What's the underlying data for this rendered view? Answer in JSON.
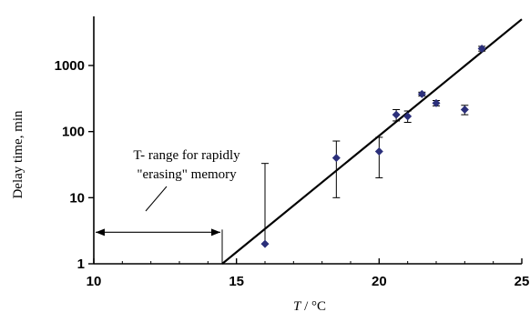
{
  "chart_data": {
    "type": "scatter",
    "xlabel": "T / °C",
    "xlabel_italic_part": "T",
    "xlabel_rest": " / °C",
    "ylabel": "Delay time, min",
    "xlim": [
      10,
      25
    ],
    "ylim": [
      1,
      5000
    ],
    "yscale": "log",
    "x_ticks": [
      10,
      15,
      20,
      25
    ],
    "x_tick_labels": [
      "10",
      "15",
      "20",
      "25"
    ],
    "y_ticks": [
      1,
      10,
      100,
      1000
    ],
    "y_tick_labels": [
      "1",
      "10",
      "100",
      "1000"
    ],
    "grid": false,
    "legend": "none",
    "marker_color": "#2b2f7a",
    "points": [
      {
        "x": 16.0,
        "y": 2.0,
        "y_err_low": 2.0,
        "y_err_high": 33
      },
      {
        "x": 18.5,
        "y": 40,
        "y_err_low": 10,
        "y_err_high": 72
      },
      {
        "x": 20.0,
        "y": 50,
        "y_err_low": 20,
        "y_err_high": 82
      },
      {
        "x": 20.6,
        "y": 180,
        "y_err_low": 145,
        "y_err_high": 215
      },
      {
        "x": 21.0,
        "y": 170,
        "y_err_low": 138,
        "y_err_high": 205
      },
      {
        "x": 21.5,
        "y": 370,
        "y_err_low": 345,
        "y_err_high": 395
      },
      {
        "x": 22.0,
        "y": 270,
        "y_err_low": 245,
        "y_err_high": 295
      },
      {
        "x": 23.0,
        "y": 215,
        "y_err_low": 180,
        "y_err_high": 250
      },
      {
        "x": 23.6,
        "y": 1800,
        "y_err_low": 1650,
        "y_err_high": 1950
      }
    ],
    "fit_line": {
      "x_start": 14.5,
      "y_start": 1,
      "x_end": 25,
      "y_end": 5000
    },
    "annotation": {
      "lines": [
        "T- range for rapidly",
        "\"erasing\" memory"
      ],
      "range_x_start": 10,
      "range_x_end": 14.5,
      "range_y": 3
    }
  }
}
